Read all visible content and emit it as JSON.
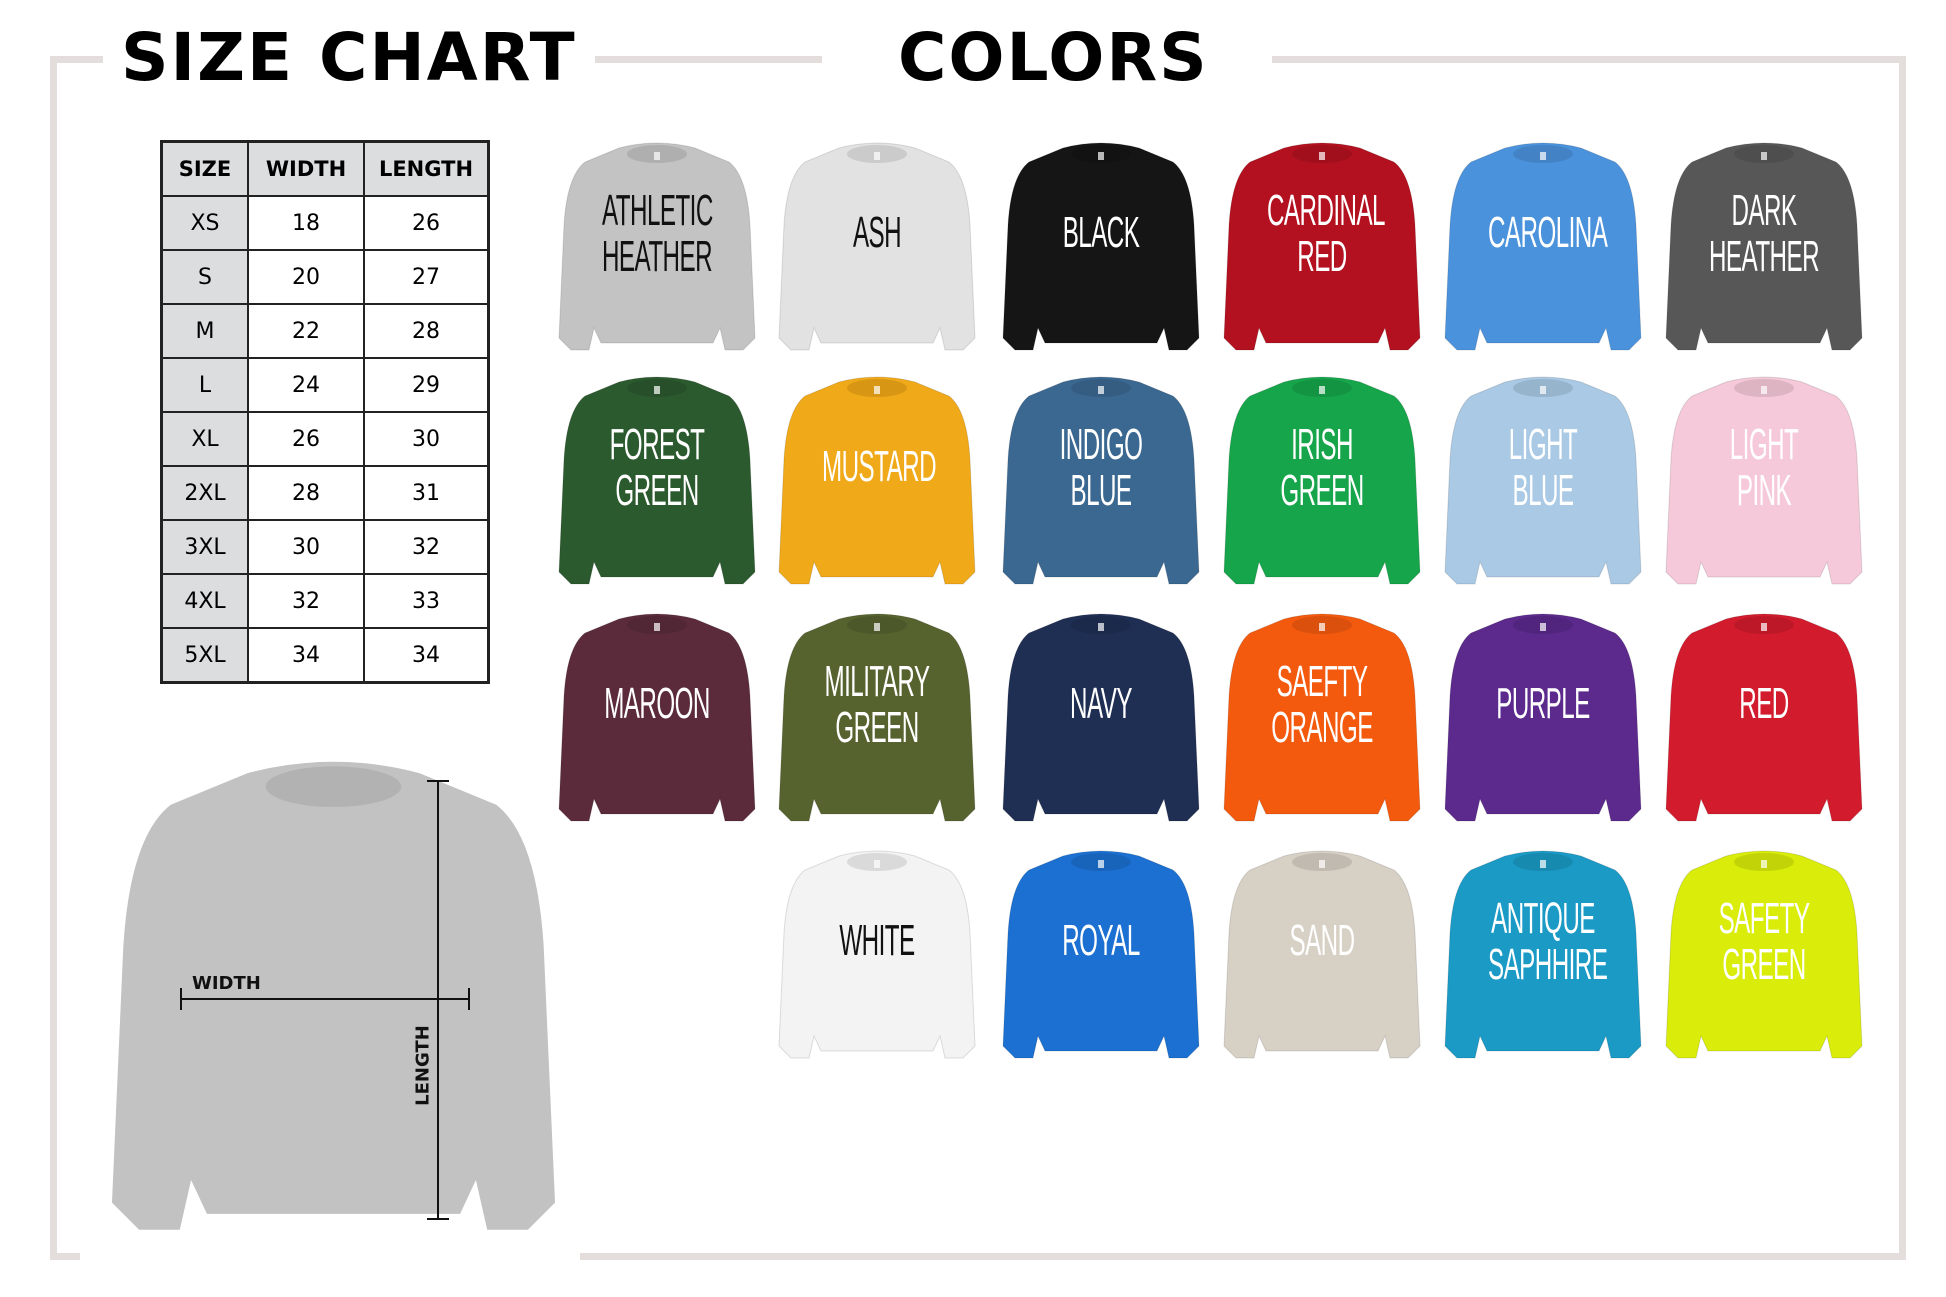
{
  "headings": {
    "size_chart": "SIZE CHART",
    "colors": "COLORS"
  },
  "size_table": {
    "headers": [
      "SIZE",
      "WIDTH",
      "LENGTH"
    ],
    "rows": [
      [
        "XS",
        "18",
        "26"
      ],
      [
        "S",
        "20",
        "27"
      ],
      [
        "M",
        "22",
        "28"
      ],
      [
        "L",
        "24",
        "29"
      ],
      [
        "XL",
        "26",
        "30"
      ],
      [
        "2XL",
        "28",
        "31"
      ],
      [
        "3XL",
        "30",
        "32"
      ],
      [
        "4XL",
        "32",
        "33"
      ],
      [
        "5XL",
        "34",
        "34"
      ]
    ]
  },
  "diagram": {
    "width_label": "WIDTH",
    "length_label": "LENGTH",
    "sweater_color": "#c2c2c2"
  },
  "frame_color": "#e3dedb",
  "colors": [
    {
      "label": "ATHLETIC\nHEATHER",
      "fill": "#c3c3c3",
      "text": "#111111"
    },
    {
      "label": "ASH",
      "fill": "#e2e2e2",
      "text": "#111111"
    },
    {
      "label": "BLACK",
      "fill": "#151515",
      "text": "#ffffff"
    },
    {
      "label": "CARDINAL\nRED",
      "fill": "#b3111f",
      "text": "#ffffff"
    },
    {
      "label": "CAROLINA",
      "fill": "#4b92dc",
      "text": "#ffffff"
    },
    {
      "label": "DARK\nHEATHER",
      "fill": "#575757",
      "text": "#ffffff"
    },
    {
      "label": "FOREST\nGREEN",
      "fill": "#2c5a2f",
      "text": "#ffffff"
    },
    {
      "label": "MUSTARD",
      "fill": "#f0a918",
      "text": "#ffffff"
    },
    {
      "label": "INDIGO\nBLUE",
      "fill": "#3b6891",
      "text": "#ffffff"
    },
    {
      "label": "IRISH\nGREEN",
      "fill": "#16a54a",
      "text": "#ffffff"
    },
    {
      "label": "LIGHT\nBLUE",
      "fill": "#a9c9e5",
      "text": "#ffffff"
    },
    {
      "label": "LIGHT\nPINK",
      "fill": "#f5c9d9",
      "text": "#ffffff"
    },
    {
      "label": "MAROON",
      "fill": "#5b2b3b",
      "text": "#ffffff"
    },
    {
      "label": "MILITARY\nGREEN",
      "fill": "#56632f",
      "text": "#ffffff"
    },
    {
      "label": "NAVY",
      "fill": "#1f2e53",
      "text": "#ffffff"
    },
    {
      "label": "SAEFTY\nORANGE",
      "fill": "#f35a0e",
      "text": "#ffffff"
    },
    {
      "label": "PURPLE",
      "fill": "#5b2a8c",
      "text": "#ffffff"
    },
    {
      "label": "RED",
      "fill": "#d21b2d",
      "text": "#ffffff"
    },
    {
      "label": "WHITE",
      "fill": "#f3f3f3",
      "text": "#111111"
    },
    {
      "label": "ROYAL",
      "fill": "#1b70d1",
      "text": "#ffffff"
    },
    {
      "label": "SAND",
      "fill": "#d7d0c5",
      "text": "#ffffff"
    },
    {
      "label": "ANTIQUE\nSAPHHIRE",
      "fill": "#1a9ac5",
      "text": "#ffffff"
    },
    {
      "label": "SAFETY\nGREEN",
      "fill": "#d9ec0a",
      "text": "#ffffff"
    }
  ]
}
